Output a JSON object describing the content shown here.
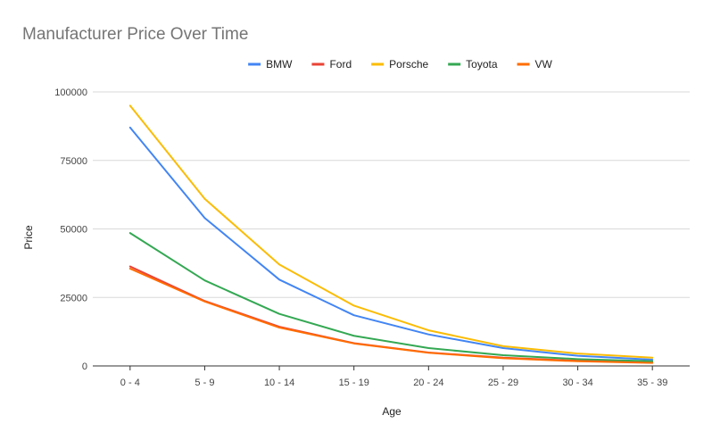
{
  "chart_data": {
    "type": "line",
    "title": "Manufacturer Price Over Time",
    "xlabel": "Age",
    "ylabel": "Price",
    "categories": [
      "0 - 4",
      "5 - 9",
      "10 - 14",
      "15 - 19",
      "20 - 24",
      "25 - 29",
      "30 - 34",
      "35 - 39"
    ],
    "ylim": [
      0,
      100000
    ],
    "yticks": [
      0,
      25000,
      50000,
      75000,
      100000
    ],
    "ytick_labels": [
      "0",
      "25000",
      "50000",
      "75000",
      "100000"
    ],
    "grid": "horizontal",
    "legend_position": "top",
    "series": [
      {
        "name": "BMW",
        "color": "#4285f4",
        "values": [
          87000,
          54000,
          31500,
          18500,
          11500,
          6500,
          3700,
          2300
        ]
      },
      {
        "name": "Ford",
        "color": "#ea4335",
        "values": [
          36300,
          23700,
          14300,
          8300,
          4900,
          3000,
          1900,
          1300
        ]
      },
      {
        "name": "Porsche",
        "color": "#fbbc04",
        "values": [
          95000,
          61000,
          37000,
          22000,
          13000,
          7200,
          4500,
          3000
        ]
      },
      {
        "name": "Toyota",
        "color": "#34a853",
        "values": [
          48500,
          31200,
          19000,
          11000,
          6500,
          3900,
          2500,
          1700
        ]
      },
      {
        "name": "VW",
        "color": "#ff6d01",
        "values": [
          35500,
          23500,
          14000,
          8200,
          4800,
          2800,
          1700,
          1100
        ]
      }
    ]
  }
}
